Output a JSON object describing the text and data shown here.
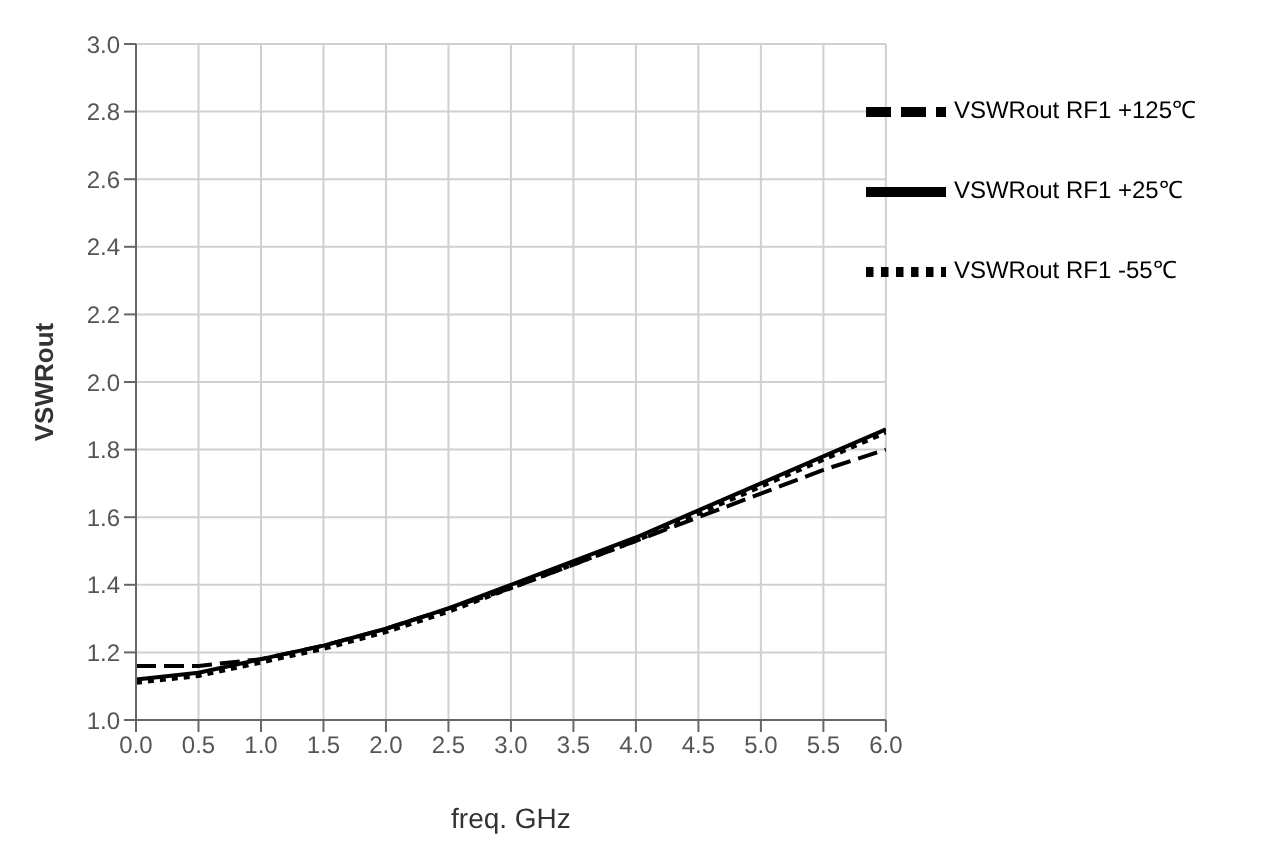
{
  "chart_data": {
    "type": "line",
    "xlabel": "freq. GHz",
    "ylabel": "VSWRout",
    "x": [
      0,
      0.5,
      1,
      1.5,
      2,
      2.5,
      3,
      3.5,
      4,
      4.5,
      5,
      5.5,
      6
    ],
    "series": [
      {
        "name": "VSWRout RF1 +25℃",
        "color": "#000000",
        "line_style": "solid",
        "values": [
          1.12,
          1.14,
          1.18,
          1.22,
          1.27,
          1.33,
          1.4,
          1.47,
          1.54,
          1.62,
          1.7,
          1.78,
          1.86
        ]
      },
      {
        "name": "VSWRout RF1 +125℃",
        "color": "#000000",
        "line_style": "dashed",
        "values": [
          1.16,
          1.16,
          1.18,
          1.22,
          1.27,
          1.33,
          1.39,
          1.46,
          1.53,
          1.6,
          1.67,
          1.74,
          1.8
        ]
      },
      {
        "name": "VSWRout RF1 -55℃",
        "color": "#000000",
        "line_style": "dotted",
        "values": [
          1.11,
          1.13,
          1.17,
          1.21,
          1.26,
          1.32,
          1.39,
          1.46,
          1.53,
          1.61,
          1.69,
          1.77,
          1.85
        ]
      }
    ],
    "xlim": [
      0,
      6
    ],
    "xticks": [
      {
        "value": 0,
        "label": "0.0"
      },
      {
        "value": 0.5,
        "label": "0.5"
      },
      {
        "value": 1,
        "label": "1.0"
      },
      {
        "value": 1.5,
        "label": "1.5"
      },
      {
        "value": 2,
        "label": "2.0"
      },
      {
        "value": 2.5,
        "label": "2.5"
      },
      {
        "value": 3,
        "label": "3.0"
      },
      {
        "value": 3.5,
        "label": "3.5"
      },
      {
        "value": 4,
        "label": "4.0"
      },
      {
        "value": 4.5,
        "label": "4.5"
      },
      {
        "value": 5,
        "label": "5.0"
      },
      {
        "value": 5.5,
        "label": "5.5"
      },
      {
        "value": 6,
        "label": "6.0"
      }
    ],
    "ylim": [
      1,
      3
    ],
    "yticks": [
      {
        "value": 1,
        "label": "1.0"
      },
      {
        "value": 1.2,
        "label": "1.2"
      },
      {
        "value": 1.4,
        "label": "1.4"
      },
      {
        "value": 1.6,
        "label": "1.6"
      },
      {
        "value": 1.8,
        "label": "1.8"
      },
      {
        "value": 2,
        "label": "2.0"
      },
      {
        "value": 2.2,
        "label": "2.2"
      },
      {
        "value": 2.4,
        "label": "2.4"
      },
      {
        "value": 2.6,
        "label": "2.6"
      },
      {
        "value": 2.8,
        "label": "2.8"
      },
      {
        "value": 3,
        "label": "3.0"
      }
    ],
    "grid": true,
    "legend": "top right",
    "marker": "none"
  }
}
